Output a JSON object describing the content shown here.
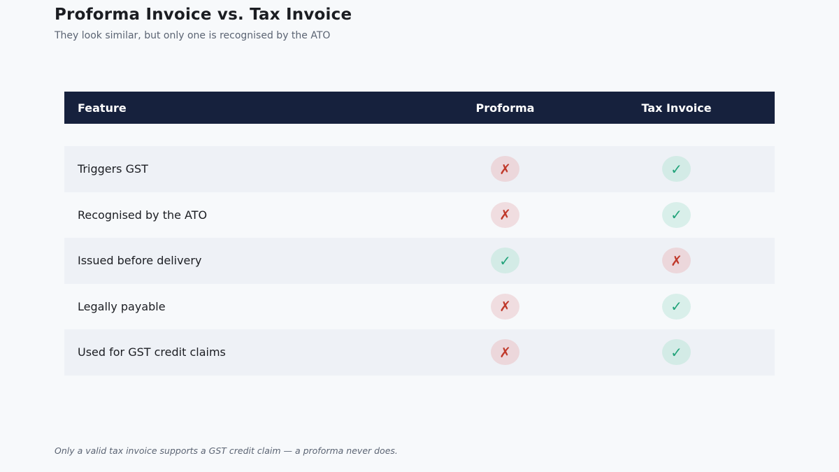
{
  "header": {
    "title": "Proforma Invoice vs. Tax Invoice",
    "subtitle": "They look similar, but only one is recognised by the ATO"
  },
  "table": {
    "columns": [
      "Feature",
      "Proforma",
      "Tax Invoice"
    ],
    "rows": [
      {
        "feature": "Triggers GST",
        "proforma": "no",
        "tax_invoice": "yes"
      },
      {
        "feature": "Recognised by the ATO",
        "proforma": "no",
        "tax_invoice": "yes"
      },
      {
        "feature": "Issued before delivery",
        "proforma": "yes",
        "tax_invoice": "no"
      },
      {
        "feature": "Legally payable",
        "proforma": "no",
        "tax_invoice": "yes"
      },
      {
        "feature": "Used for GST credit claims",
        "proforma": "no",
        "tax_invoice": "yes"
      }
    ]
  },
  "icons": {
    "yes": {
      "name": "check-icon",
      "glyph": "✓",
      "color": "#22a37a"
    },
    "no": {
      "name": "cross-icon",
      "glyph": "✗",
      "color": "#c0392b"
    }
  },
  "colors": {
    "header_bg": "#16213d",
    "alt_row_bg": "#eef1f6"
  },
  "footnote": "Only a valid tax invoice supports a GST credit claim — a proforma never does."
}
